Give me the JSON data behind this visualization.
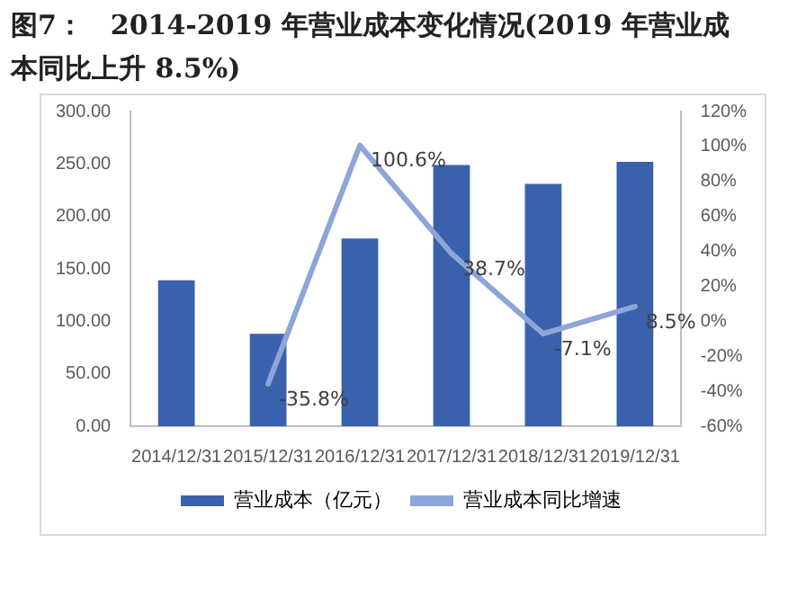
{
  "chart_data": {
    "type": "bar",
    "title": "图7：　2014-2019 年营业成本变化情况(2019 年营业成本同比上升 8.5%)",
    "categories": [
      "2014/12/31",
      "2015/12/31",
      "2016/12/31",
      "2017/12/31",
      "2018/12/31",
      "2019/12/31"
    ],
    "series": [
      {
        "name": "营业成本（亿元）",
        "color": "#3a61ab",
        "values": [
          139,
          88,
          179,
          249,
          231,
          252
        ]
      },
      {
        "name": "营业成本同比增速",
        "type": "line",
        "axis": "y2",
        "color": "#8ea5d9",
        "values": [
          null,
          -35.8,
          100.6,
          38.7,
          -7.1,
          8.5
        ],
        "value_labels": [
          null,
          "-35.8%",
          "100.6%",
          "38.7%",
          "-7.1%",
          "8.5%"
        ]
      }
    ],
    "ylim": [
      0,
      300
    ],
    "yticks": [
      {
        "value": 0,
        "label": "0.00"
      },
      {
        "value": 50,
        "label": "50.00"
      },
      {
        "value": 100,
        "label": "100.00"
      },
      {
        "value": 150,
        "label": "150.00"
      },
      {
        "value": 200,
        "label": "200.00"
      },
      {
        "value": 250,
        "label": "250.00"
      },
      {
        "value": 300,
        "label": "300.00"
      }
    ],
    "y2lim": [
      -60,
      120
    ],
    "y2ticks": [
      {
        "value": -60,
        "label": "-60%"
      },
      {
        "value": -40,
        "label": "-40%"
      },
      {
        "value": -20,
        "label": "-20%"
      },
      {
        "value": 0,
        "label": "0%"
      },
      {
        "value": 20,
        "label": "20%"
      },
      {
        "value": 40,
        "label": "40%"
      },
      {
        "value": 60,
        "label": "60%"
      },
      {
        "value": 80,
        "label": "80%"
      },
      {
        "value": 100,
        "label": "100%"
      },
      {
        "value": 120,
        "label": "120%"
      }
    ],
    "grid": false,
    "legend": "bottom",
    "marker": "none"
  }
}
